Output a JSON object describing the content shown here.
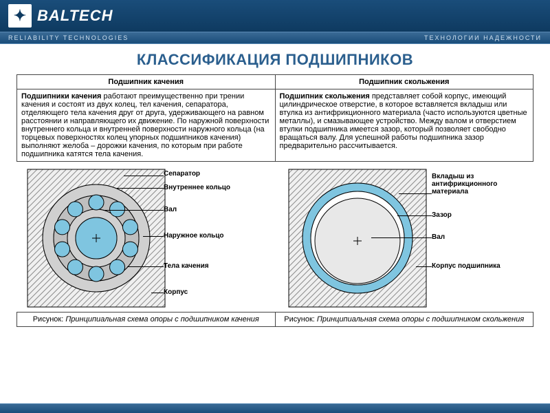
{
  "header": {
    "brand": "BALTECH",
    "logo_glyph": "✦",
    "tagline_left": "RELIABILITY TECHNOLOGIES",
    "tagline_right": "ТЕХНОЛОГИИ НАДЕЖНОСТИ"
  },
  "title": "КЛАССИФИКАЦИЯ ПОДШИПНИКОВ",
  "table": {
    "col1_header": "Подшипник качения",
    "col2_header": "Подшипник скольжения",
    "col1_body_bold": "Подшипники качения",
    "col1_body_rest": " работают преимущественно при трении качения и состоят из двух колец, тел качения, сепаратора, отделяющего тела качения друг от друга, удерживающего на равном расстоянии и направляющего их движение. По наружной поверхности внутреннего кольца и внутренней поверхности наружного кольца (на торцевых поверхностях колец упорных подшипников качения) выполняют желоба – дорожки качения, по которым при работе подшипника катятся тела качения.",
    "col2_body_bold": "Подшипник скольжения",
    "col2_body_rest": " представляет собой корпус, имеющий цилиндрическое отверстие, в которое вставляется вкладыш или втулка из антифрикционного материала (часто используются цветные металлы), и смазывающее устройство. Между валом и отверстием втулки подшипника имеется зазор, который позволяет свободно вращаться валу. Для успешной работы подшипника зазор предварительно рассчитывается."
  },
  "diagram_left": {
    "labels": {
      "separator": "Сепаратор",
      "inner_ring": "Внутреннее кольцо",
      "shaft": "Вал",
      "outer_ring": "Наружное кольцо",
      "rolling_elements": "Тела качения",
      "housing": "Корпус"
    },
    "colors": {
      "housing_hatch": "#8a8a8a",
      "outer_ring": "#d0d0d0",
      "inner_ring": "#d0d0d0",
      "shaft": "#7fc5e0",
      "ball": "#7fc5e0",
      "separator": "#bfbfbf",
      "stroke": "#000000"
    }
  },
  "diagram_right": {
    "labels": {
      "liner": "Вкладыш из антифрикционного материала",
      "gap": "Зазор",
      "shaft": "Вал",
      "housing": "Корпус подшипника"
    },
    "colors": {
      "housing_hatch": "#8a8a8a",
      "liner": "#7fc5e0",
      "gap": "#ffffff",
      "shaft": "#e8e8e8",
      "stroke": "#000000"
    }
  },
  "captions": {
    "left_prefix": "Рисунок: ",
    "left_italic": "Принципиальная схема опоры с подшипником качения",
    "right_prefix": "Рисунок: ",
    "right_italic": "Принципиальная схема опоры с подшипником скольжения"
  },
  "colors": {
    "header_bg": "#1a4d7a",
    "title_color": "#2b5f8e",
    "border": "#444444"
  }
}
